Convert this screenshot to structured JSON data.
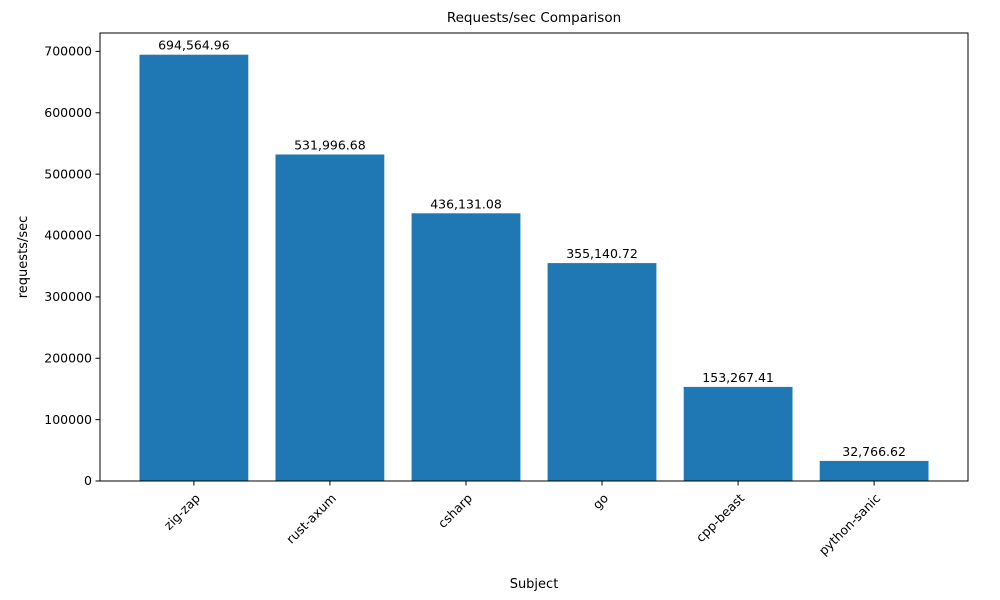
{
  "figure": {
    "background": "#ffffff"
  },
  "chart_data": {
    "type": "bar",
    "title": "Requests/sec Comparison",
    "xlabel": "Subject",
    "ylabel": "requests/sec",
    "categories": [
      "zig-zap",
      "rust-axum",
      "csharp",
      "go",
      "cpp-beast",
      "python-sanic"
    ],
    "values": [
      694564.96,
      531996.68,
      436131.08,
      355140.72,
      153267.41,
      32766.62
    ],
    "value_labels": [
      "694,564.96",
      "531,996.68",
      "436,131.08",
      "355,140.72",
      "153,267.41",
      "32,766.62"
    ],
    "bar_color": "#1f77b4",
    "ylim": [
      0,
      730000
    ],
    "ytick_step": 100000,
    "yticks": [
      0,
      100000,
      200000,
      300000,
      400000,
      500000,
      600000,
      700000
    ],
    "grid": false,
    "legend": false,
    "xtick_rotation_deg": 45
  }
}
